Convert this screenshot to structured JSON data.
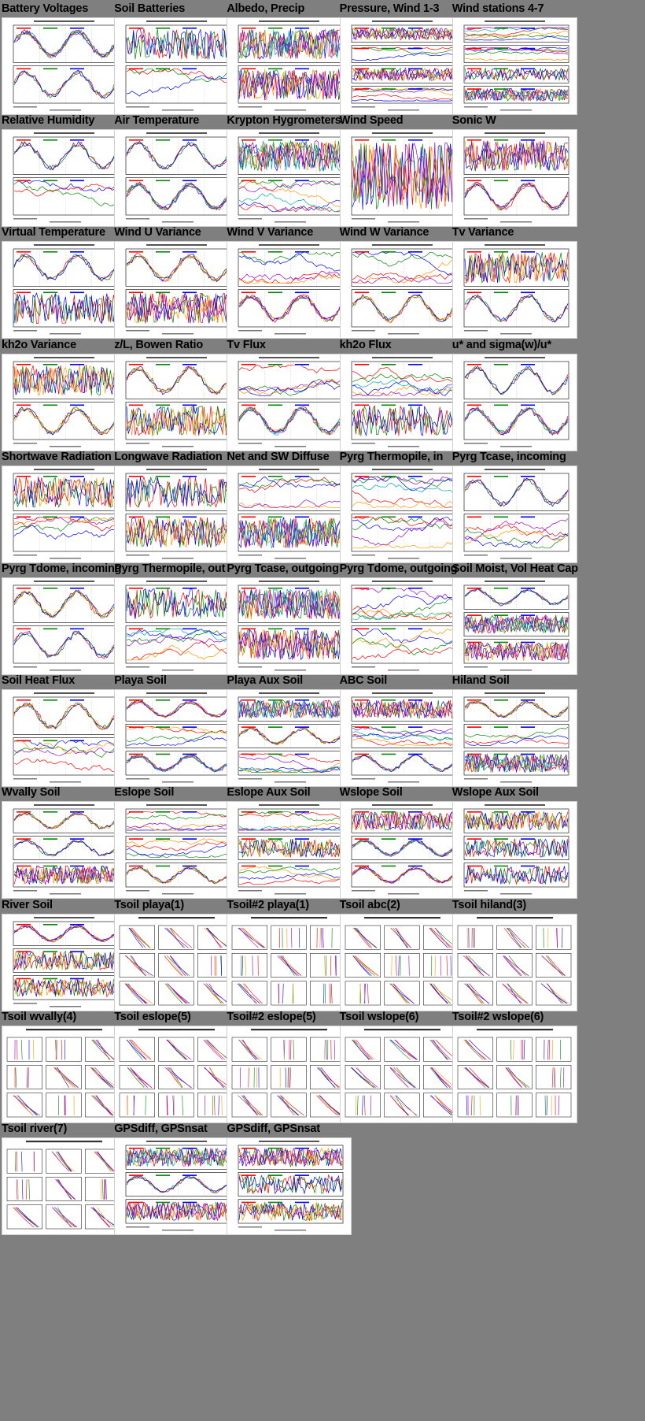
{
  "page": {
    "background": "#7f7f7f",
    "palette": [
      "#ff0000",
      "#008800",
      "#0000ff",
      "#ff9900",
      "#9900cc",
      "#00aaaa",
      "#996633",
      "#88cc00",
      "#ff66cc"
    ]
  },
  "thumbnails": [
    {
      "title": "Battery Voltages",
      "kind": "ts2",
      "seed": 1
    },
    {
      "title": "Soil Batteries",
      "kind": "ts2",
      "seed": 2
    },
    {
      "title": "Albedo, Precip",
      "kind": "ts2",
      "seed": 3
    },
    {
      "title": "Pressure, Wind 1-3",
      "kind": "ts4",
      "seed": 4
    },
    {
      "title": "Wind stations 4-7",
      "kind": "ts4",
      "seed": 5
    },
    {
      "title": "Relative Humidity",
      "kind": "ts2",
      "seed": 6
    },
    {
      "title": "Air Temperature",
      "kind": "ts2",
      "seed": 7
    },
    {
      "title": "Krypton Hygrometers",
      "kind": "ts2",
      "seed": 8
    },
    {
      "title": "Wind Speed",
      "kind": "ts1",
      "seed": 9
    },
    {
      "title": "Sonic W",
      "kind": "ts2",
      "seed": 10
    },
    {
      "title": "Virtual Temperature",
      "kind": "ts2",
      "seed": 11
    },
    {
      "title": "Wind U Variance",
      "kind": "ts2",
      "seed": 12
    },
    {
      "title": "Wind V Variance",
      "kind": "ts2",
      "seed": 13
    },
    {
      "title": "Wind W Variance",
      "kind": "ts2",
      "seed": 14
    },
    {
      "title": "Tv Variance",
      "kind": "ts2",
      "seed": 15
    },
    {
      "title": "kh2o Variance",
      "kind": "ts2",
      "seed": 16
    },
    {
      "title": "z/L, Bowen Ratio",
      "kind": "ts2",
      "seed": 17
    },
    {
      "title": "Tv Flux",
      "kind": "ts2",
      "seed": 18
    },
    {
      "title": "kh2o Flux",
      "kind": "ts2",
      "seed": 19
    },
    {
      "title": "u* and sigma(w)/u*",
      "kind": "ts2",
      "seed": 20
    },
    {
      "title": "Shortwave Radiation",
      "kind": "ts2",
      "seed": 21
    },
    {
      "title": "Longwave Radiation",
      "kind": "ts2",
      "seed": 22
    },
    {
      "title": "Net and SW Diffuse",
      "kind": "ts2",
      "seed": 23
    },
    {
      "title": "Pyrg Thermopile, in",
      "kind": "ts2",
      "seed": 24
    },
    {
      "title": "Pyrg Tcase, incoming",
      "kind": "ts2",
      "seed": 25
    },
    {
      "title": "Pyrg Tdome, incoming",
      "kind": "ts2",
      "seed": 26
    },
    {
      "title": "Pyrg Thermopile, out",
      "kind": "ts2",
      "seed": 27
    },
    {
      "title": "Pyrg Tcase, outgoing",
      "kind": "ts2",
      "seed": 28
    },
    {
      "title": "Pyrg Tdome, outgoing",
      "kind": "ts2",
      "seed": 29
    },
    {
      "title": "Soil Moist, Vol Heat Cap",
      "kind": "ts3",
      "seed": 30
    },
    {
      "title": "Soil Heat Flux",
      "kind": "ts2",
      "seed": 31
    },
    {
      "title": "Playa Soil",
      "kind": "ts3",
      "seed": 32
    },
    {
      "title": "Playa Aux Soil",
      "kind": "ts3",
      "seed": 33
    },
    {
      "title": "ABC Soil",
      "kind": "ts3",
      "seed": 34
    },
    {
      "title": "Hiland Soil",
      "kind": "ts3",
      "seed": 35
    },
    {
      "title": "Wvally Soil",
      "kind": "ts3",
      "seed": 36
    },
    {
      "title": "Eslope Soil",
      "kind": "ts3",
      "seed": 37
    },
    {
      "title": "Eslope Aux Soil",
      "kind": "ts3",
      "seed": 38
    },
    {
      "title": "Wslope Soil",
      "kind": "ts3",
      "seed": 39
    },
    {
      "title": "Wslope Aux Soil",
      "kind": "ts3",
      "seed": 40
    },
    {
      "title": "River Soil",
      "kind": "ts3",
      "seed": 41
    },
    {
      "title": "Tsoil playa(1)",
      "kind": "profile",
      "seed": 42
    },
    {
      "title": "Tsoil#2 playa(1)",
      "kind": "profile",
      "seed": 43
    },
    {
      "title": "Tsoil abc(2)",
      "kind": "profile",
      "seed": 44
    },
    {
      "title": "Tsoil hiland(3)",
      "kind": "profile",
      "seed": 45
    },
    {
      "title": "Tsoil wvally(4)",
      "kind": "profile",
      "seed": 46
    },
    {
      "title": "Tsoil eslope(5)",
      "kind": "profile",
      "seed": 47
    },
    {
      "title": "Tsoil#2 eslope(5)",
      "kind": "profile",
      "seed": 48
    },
    {
      "title": "Tsoil wslope(6)",
      "kind": "profile",
      "seed": 49
    },
    {
      "title": "Tsoil#2 wslope(6)",
      "kind": "profile",
      "seed": 50
    },
    {
      "title": "Tsoil river(7)",
      "kind": "profile",
      "seed": 51
    },
    {
      "title": "GPSdiff, GPSnsat",
      "kind": "ts3",
      "seed": 52
    },
    {
      "title": "GPSdiff, GPSnsat",
      "kind": "ts3",
      "seed": 53
    }
  ]
}
